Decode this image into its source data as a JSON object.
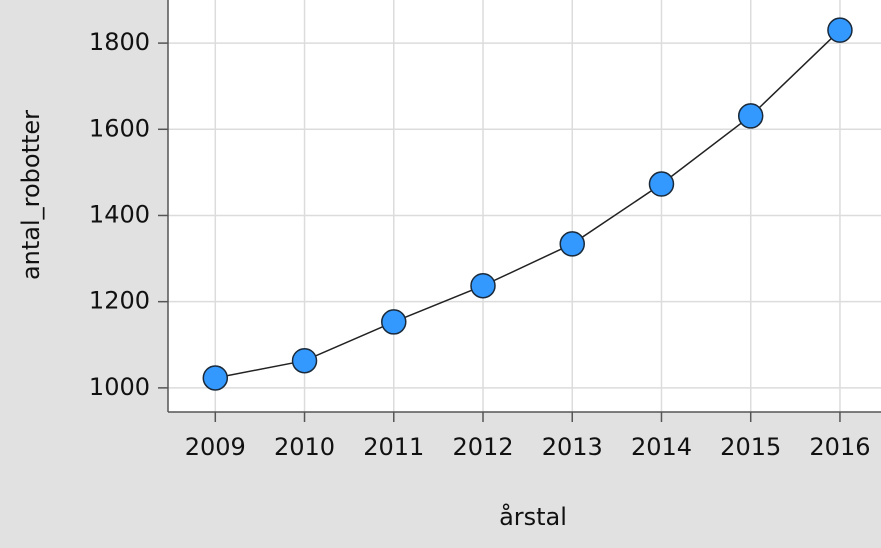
{
  "chart_data": {
    "type": "line",
    "x_label": "årstal",
    "y_label": "antal_robotter",
    "x": [
      2009,
      2010,
      2011,
      2012,
      2013,
      2014,
      2015,
      2016
    ],
    "series": [
      {
        "color": "#3399ff",
        "values": [
          1023,
          1063,
          1153,
          1237,
          1334,
          1473,
          1631,
          1830
        ]
      }
    ],
    "xlim": [
      2008.47,
      2016.46
    ],
    "ylim": [
      944,
      1900
    ],
    "xticks": [
      2009,
      2010,
      2011,
      2012,
      2013,
      2014,
      2015,
      2016
    ],
    "yticks": [
      1000,
      1200,
      1400,
      1600,
      1800
    ],
    "grid": true
  }
}
